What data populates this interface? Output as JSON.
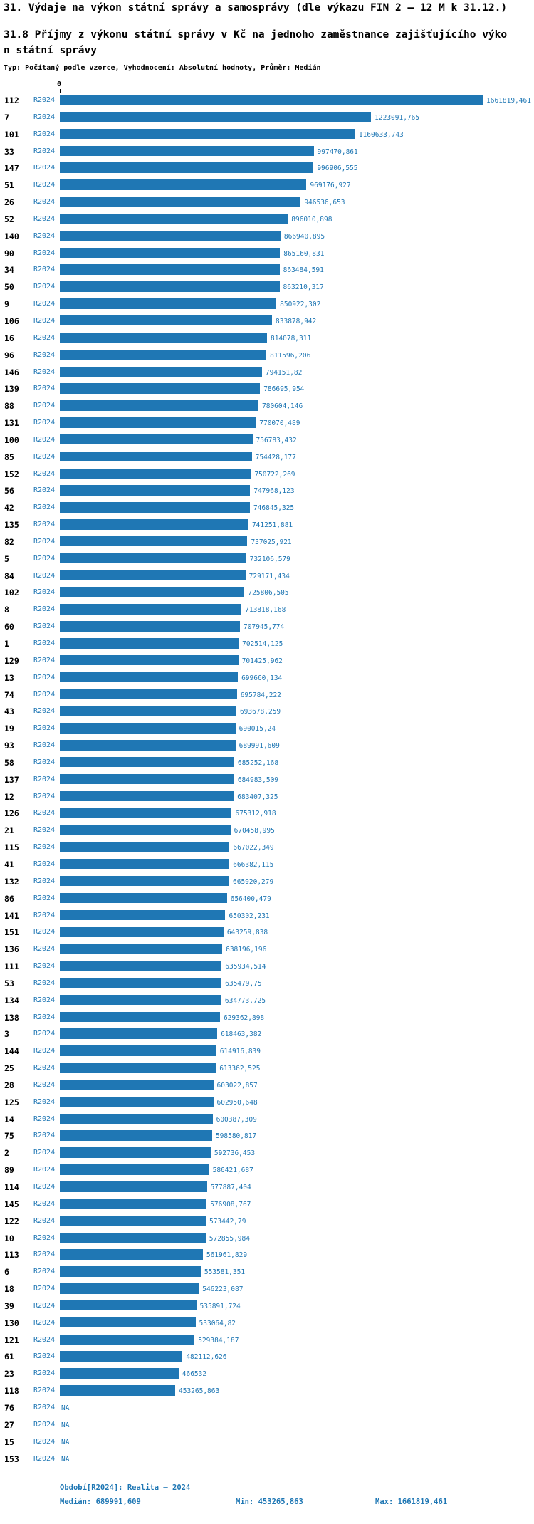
{
  "colors": {
    "accent": "#1f77b4",
    "text": "#000000",
    "background": "#ffffff"
  },
  "titles": {
    "line1": "31. Výdaje na výkon státní správy a samosprávy (dle výkazu FIN 2 – 12 M k 31.12.)",
    "line2": "31.8 Příjmy z výkonu státní správy v Kč na jednoho zaměstnance zajišťujícího výko",
    "line3": "n státní správy",
    "subtitle": "Typ: Počítaný podle vzorce, Vyhodnocení: Absolutní hodnoty, Průměr: Medián"
  },
  "chart_data": {
    "type": "bar",
    "orientation": "horizontal",
    "title": "31.8 Příjmy z výkonu státní správy v Kč na jednoho zaměstnance zajišťujícího výkon státní správy",
    "series_label": "R2024",
    "axis_zero_label": "0",
    "xlim": [
      0,
      1661819.461
    ],
    "median_value": 689991.609,
    "na_label": "NA",
    "rows": [
      {
        "id": "112",
        "value": 1661819.461,
        "display": "1661819,461"
      },
      {
        "id": "7",
        "value": 1223091.765,
        "display": "1223091,765"
      },
      {
        "id": "101",
        "value": 1160633.743,
        "display": "1160633,743"
      },
      {
        "id": "33",
        "value": 997470.861,
        "display": "997470,861"
      },
      {
        "id": "147",
        "value": 996906.555,
        "display": "996906,555"
      },
      {
        "id": "51",
        "value": 969176.927,
        "display": "969176,927"
      },
      {
        "id": "26",
        "value": 946536.653,
        "display": "946536,653"
      },
      {
        "id": "52",
        "value": 896010.898,
        "display": "896010,898"
      },
      {
        "id": "140",
        "value": 866940.895,
        "display": "866940,895"
      },
      {
        "id": "90",
        "value": 865160.831,
        "display": "865160,831"
      },
      {
        "id": "34",
        "value": 863484.591,
        "display": "863484,591"
      },
      {
        "id": "50",
        "value": 863210.317,
        "display": "863210,317"
      },
      {
        "id": "9",
        "value": 850922.302,
        "display": "850922,302"
      },
      {
        "id": "106",
        "value": 833878.942,
        "display": "833878,942"
      },
      {
        "id": "16",
        "value": 814078.311,
        "display": "814078,311"
      },
      {
        "id": "96",
        "value": 811596.206,
        "display": "811596,206"
      },
      {
        "id": "146",
        "value": 794151.82,
        "display": "794151,82"
      },
      {
        "id": "139",
        "value": 786695.954,
        "display": "786695,954"
      },
      {
        "id": "88",
        "value": 780604.146,
        "display": "780604,146"
      },
      {
        "id": "131",
        "value": 770070.489,
        "display": "770070,489"
      },
      {
        "id": "100",
        "value": 756783.432,
        "display": "756783,432"
      },
      {
        "id": "85",
        "value": 754428.177,
        "display": "754428,177"
      },
      {
        "id": "152",
        "value": 750722.269,
        "display": "750722,269"
      },
      {
        "id": "56",
        "value": 747968.123,
        "display": "747968,123"
      },
      {
        "id": "42",
        "value": 746845.325,
        "display": "746845,325"
      },
      {
        "id": "135",
        "value": 741251.881,
        "display": "741251,881"
      },
      {
        "id": "82",
        "value": 737025.921,
        "display": "737025,921"
      },
      {
        "id": "5",
        "value": 732106.579,
        "display": "732106,579"
      },
      {
        "id": "84",
        "value": 729171.434,
        "display": "729171,434"
      },
      {
        "id": "102",
        "value": 725806.505,
        "display": "725806,505"
      },
      {
        "id": "8",
        "value": 713818.168,
        "display": "713818,168"
      },
      {
        "id": "60",
        "value": 707945.774,
        "display": "707945,774"
      },
      {
        "id": "1",
        "value": 702514.125,
        "display": "702514,125"
      },
      {
        "id": "129",
        "value": 701425.962,
        "display": "701425,962"
      },
      {
        "id": "13",
        "value": 699660.134,
        "display": "699660,134"
      },
      {
        "id": "74",
        "value": 695784.222,
        "display": "695784,222"
      },
      {
        "id": "43",
        "value": 693678.259,
        "display": "693678,259"
      },
      {
        "id": "19",
        "value": 690015.24,
        "display": "690015,24"
      },
      {
        "id": "93",
        "value": 689991.609,
        "display": "689991,609"
      },
      {
        "id": "58",
        "value": 685252.168,
        "display": "685252,168"
      },
      {
        "id": "137",
        "value": 684983.509,
        "display": "684983,509"
      },
      {
        "id": "12",
        "value": 683407.325,
        "display": "683407,325"
      },
      {
        "id": "126",
        "value": 675312.918,
        "display": "675312,918"
      },
      {
        "id": "21",
        "value": 670458.995,
        "display": "670458,995"
      },
      {
        "id": "115",
        "value": 667022.349,
        "display": "667022,349"
      },
      {
        "id": "41",
        "value": 666382.115,
        "display": "666382,115"
      },
      {
        "id": "132",
        "value": 665920.279,
        "display": "665920,279"
      },
      {
        "id": "86",
        "value": 656400.479,
        "display": "656400,479"
      },
      {
        "id": "141",
        "value": 650302.231,
        "display": "650302,231"
      },
      {
        "id": "151",
        "value": 643259.838,
        "display": "643259,838"
      },
      {
        "id": "136",
        "value": 638196.196,
        "display": "638196,196"
      },
      {
        "id": "111",
        "value": 635934.514,
        "display": "635934,514"
      },
      {
        "id": "53",
        "value": 635479.75,
        "display": "635479,75"
      },
      {
        "id": "134",
        "value": 634773.725,
        "display": "634773,725"
      },
      {
        "id": "138",
        "value": 629362.898,
        "display": "629362,898"
      },
      {
        "id": "3",
        "value": 618463.382,
        "display": "618463,382"
      },
      {
        "id": "144",
        "value": 614916.839,
        "display": "614916,839"
      },
      {
        "id": "25",
        "value": 613362.525,
        "display": "613362,525"
      },
      {
        "id": "28",
        "value": 603022.857,
        "display": "603022,857"
      },
      {
        "id": "125",
        "value": 602950.648,
        "display": "602950,648"
      },
      {
        "id": "14",
        "value": 600387.309,
        "display": "600387,309"
      },
      {
        "id": "75",
        "value": 598580.817,
        "display": "598580,817"
      },
      {
        "id": "2",
        "value": 592736.453,
        "display": "592736,453"
      },
      {
        "id": "89",
        "value": 586421.687,
        "display": "586421,687"
      },
      {
        "id": "114",
        "value": 577887.404,
        "display": "577887,404"
      },
      {
        "id": "145",
        "value": 576908.767,
        "display": "576908,767"
      },
      {
        "id": "122",
        "value": 573442.79,
        "display": "573442,79"
      },
      {
        "id": "10",
        "value": 572855.984,
        "display": "572855,984"
      },
      {
        "id": "113",
        "value": 561961.829,
        "display": "561961,829"
      },
      {
        "id": "6",
        "value": 553581.351,
        "display": "553581,351"
      },
      {
        "id": "18",
        "value": 546223.087,
        "display": "546223,087"
      },
      {
        "id": "39",
        "value": 535891.724,
        "display": "535891,724"
      },
      {
        "id": "130",
        "value": 533064.82,
        "display": "533064,82"
      },
      {
        "id": "121",
        "value": 529384.187,
        "display": "529384,187"
      },
      {
        "id": "61",
        "value": 482112.626,
        "display": "482112,626"
      },
      {
        "id": "23",
        "value": 466532,
        "display": "466532"
      },
      {
        "id": "118",
        "value": 453265.863,
        "display": "453265,863"
      },
      {
        "id": "76",
        "value": null,
        "display": "NA"
      },
      {
        "id": "27",
        "value": null,
        "display": "NA"
      },
      {
        "id": "15",
        "value": null,
        "display": "NA"
      },
      {
        "id": "153",
        "value": null,
        "display": "NA"
      }
    ]
  },
  "footer": {
    "period": "Období[R2024]: Realita – 2024",
    "median": "Medián: 689991,609",
    "min": "Min: 453265,863",
    "max": "Max: 1661819,461"
  }
}
